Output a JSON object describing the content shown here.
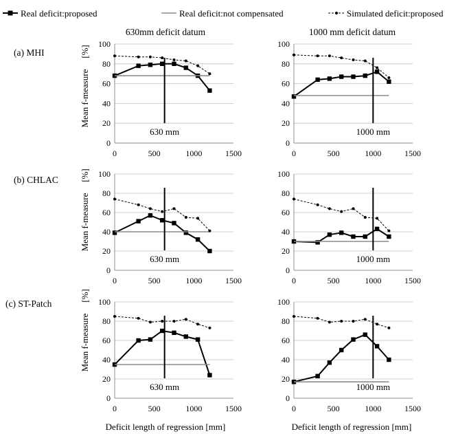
{
  "legend": [
    {
      "label": "Real deficit:proposed",
      "style": "real-proposed"
    },
    {
      "label": "Real deficit:not compensated",
      "style": "not-compensated"
    },
    {
      "label": "Simulated deficit:proposed",
      "style": "simulated"
    }
  ],
  "column_titles": [
    "630mm deficit datum",
    "1000 mm deficit datum"
  ],
  "row_labels": [
    "(a) MHI",
    "(b) CHLAC",
    "(c) ST-Patch"
  ],
  "ylabel": "Mean f-measure",
  "yunit": "[%]",
  "xlabel": "Deficit length of regression [mm]",
  "colors": {
    "real_proposed": "#000000",
    "not_compensated": "#8c8c8c",
    "simulated": "#000000",
    "vline": "#000000"
  },
  "chart_data": [
    {
      "type": "line",
      "row": 0,
      "col": 0,
      "xlim": [
        0,
        1500
      ],
      "ylim": [
        0,
        100
      ],
      "xticks": [
        0,
        500,
        1000,
        1500
      ],
      "yticks": [
        0,
        20,
        40,
        60,
        80,
        100
      ],
      "vline": {
        "x": 630,
        "label": "630 mm"
      },
      "series": [
        {
          "key": "real_proposed",
          "x": [
            0,
            300,
            450,
            600,
            750,
            900,
            1050,
            1200
          ],
          "y": [
            68,
            78,
            79,
            80,
            80,
            76,
            68,
            53
          ]
        },
        {
          "key": "not_compensated",
          "x": [
            0,
            1200
          ],
          "y": [
            68,
            68
          ]
        },
        {
          "key": "simulated",
          "x": [
            0,
            300,
            450,
            600,
            750,
            900,
            1050,
            1200
          ],
          "y": [
            88,
            87,
            87,
            86,
            84,
            83,
            78,
            70
          ]
        }
      ]
    },
    {
      "type": "line",
      "row": 0,
      "col": 1,
      "xlim": [
        0,
        1500
      ],
      "ylim": [
        0,
        100
      ],
      "xticks": [
        0,
        500,
        1000,
        1500
      ],
      "yticks": [
        0,
        20,
        40,
        60,
        80,
        100
      ],
      "vline": {
        "x": 1000,
        "label": "1000 mm"
      },
      "series": [
        {
          "key": "real_proposed",
          "x": [
            0,
            300,
            450,
            600,
            750,
            900,
            1050,
            1200
          ],
          "y": [
            47,
            64,
            65,
            67,
            67,
            68,
            72,
            62
          ]
        },
        {
          "key": "not_compensated",
          "x": [
            0,
            1200
          ],
          "y": [
            48,
            48
          ]
        },
        {
          "key": "simulated",
          "x": [
            0,
            300,
            450,
            600,
            750,
            900,
            1050,
            1200
          ],
          "y": [
            89,
            88,
            88,
            86,
            84,
            83,
            76,
            66
          ]
        }
      ]
    },
    {
      "type": "line",
      "row": 1,
      "col": 0,
      "xlim": [
        0,
        1500
      ],
      "ylim": [
        0,
        100
      ],
      "xticks": [
        0,
        500,
        1000,
        1500
      ],
      "yticks": [
        0,
        20,
        40,
        60,
        80,
        100
      ],
      "vline": {
        "x": 630,
        "label": "630 mm"
      },
      "series": [
        {
          "key": "real_proposed",
          "x": [
            0,
            300,
            450,
            600,
            750,
            900,
            1050,
            1200
          ],
          "y": [
            39,
            51,
            57,
            52,
            49,
            39,
            32,
            20
          ]
        },
        {
          "key": "not_compensated",
          "x": [
            0,
            1200
          ],
          "y": [
            40,
            40
          ]
        },
        {
          "key": "simulated",
          "x": [
            0,
            300,
            450,
            600,
            750,
            900,
            1050,
            1200
          ],
          "y": [
            74,
            68,
            64,
            61,
            64,
            55,
            54,
            41
          ]
        }
      ]
    },
    {
      "type": "line",
      "row": 1,
      "col": 1,
      "xlim": [
        0,
        1500
      ],
      "ylim": [
        0,
        100
      ],
      "xticks": [
        0,
        500,
        1000,
        1500
      ],
      "yticks": [
        0,
        20,
        40,
        60,
        80,
        100
      ],
      "vline": {
        "x": 1000,
        "label": "1000 mm"
      },
      "series": [
        {
          "key": "real_proposed",
          "x": [
            0,
            300,
            450,
            600,
            750,
            900,
            1050,
            1200
          ],
          "y": [
            30,
            29,
            37,
            39,
            35,
            35,
            43,
            35
          ]
        },
        {
          "key": "not_compensated",
          "x": [
            0,
            1200
          ],
          "y": [
            30,
            30
          ]
        },
        {
          "key": "simulated",
          "x": [
            0,
            300,
            450,
            600,
            750,
            900,
            1050,
            1200
          ],
          "y": [
            74,
            68,
            64,
            61,
            64,
            55,
            54,
            41
          ]
        }
      ]
    },
    {
      "type": "line",
      "row": 2,
      "col": 0,
      "xlim": [
        0,
        1500
      ],
      "ylim": [
        0,
        100
      ],
      "xticks": [
        0,
        500,
        1000,
        1500
      ],
      "yticks": [
        0,
        20,
        40,
        60,
        80,
        100
      ],
      "vline": {
        "x": 630,
        "label": "630 mm"
      },
      "series": [
        {
          "key": "real_proposed",
          "x": [
            0,
            300,
            450,
            600,
            750,
            900,
            1050,
            1200
          ],
          "y": [
            35,
            60,
            61,
            70,
            68,
            64,
            61,
            24
          ]
        },
        {
          "key": "not_compensated",
          "x": [
            0,
            1200
          ],
          "y": [
            35,
            35
          ]
        },
        {
          "key": "simulated",
          "x": [
            0,
            300,
            450,
            600,
            750,
            900,
            1050,
            1200
          ],
          "y": [
            85,
            83,
            79,
            80,
            80,
            82,
            77,
            73
          ]
        }
      ]
    },
    {
      "type": "line",
      "row": 2,
      "col": 1,
      "xlim": [
        0,
        1500
      ],
      "ylim": [
        0,
        100
      ],
      "xticks": [
        0,
        500,
        1000,
        1500
      ],
      "yticks": [
        0,
        20,
        40,
        60,
        80,
        100
      ],
      "vline": {
        "x": 1000,
        "label": "1000 mm"
      },
      "series": [
        {
          "key": "real_proposed",
          "x": [
            0,
            300,
            450,
            600,
            750,
            900,
            1050,
            1200
          ],
          "y": [
            17,
            23,
            37,
            50,
            61,
            66,
            54,
            40
          ]
        },
        {
          "key": "not_compensated",
          "x": [
            0,
            1200
          ],
          "y": [
            17,
            17
          ]
        },
        {
          "key": "simulated",
          "x": [
            0,
            300,
            450,
            600,
            750,
            900,
            1050,
            1200
          ],
          "y": [
            85,
            83,
            79,
            80,
            80,
            82,
            77,
            73
          ]
        }
      ]
    }
  ]
}
